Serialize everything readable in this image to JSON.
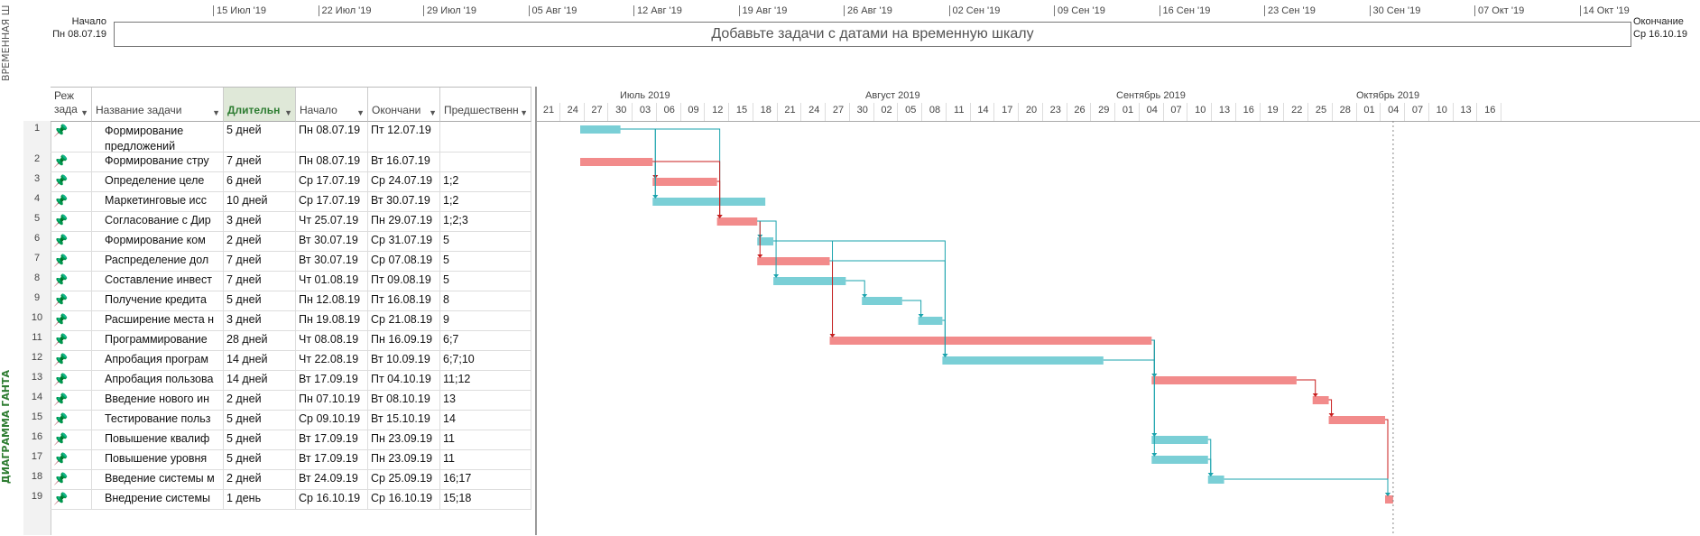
{
  "timeline": {
    "side_label": "ВРЕМЕННАЯ Ш",
    "start_label": "Начало",
    "start_date": "Пн 08.07.19",
    "end_label": "Окончание",
    "end_date": "Ср 16.10.19",
    "placeholder": "Добавьте задачи с датами на временную шкалу",
    "ticks": [
      "15 Июл '19",
      "22 Июл '19",
      "29 Июл '19",
      "05 Авг '19",
      "12 Авг '19",
      "19 Авг '19",
      "26 Авг '19",
      "02 Сен '19",
      "09 Сен '19",
      "16 Сен '19",
      "23 Сен '19",
      "30 Сен '19",
      "07 Окт '19",
      "14 Окт '19"
    ]
  },
  "gantt_label": "ДИАГРАММА ГАНТА",
  "columns": {
    "mode": "Реж зада",
    "name": "Название задачи",
    "duration": "Длительн",
    "start": "Начало",
    "finish": "Окончани",
    "pred": "Предшественн"
  },
  "months": [
    "Июль 2019",
    "Август 2019",
    "Сентябрь 2019",
    "Октябрь 2019"
  ],
  "days": [
    "21",
    "24",
    "27",
    "30",
    "03",
    "06",
    "09",
    "12",
    "15",
    "18",
    "21",
    "24",
    "27",
    "30",
    "02",
    "05",
    "08",
    "11",
    "14",
    "17",
    "20",
    "23",
    "26",
    "29",
    "01",
    "04",
    "07",
    "10",
    "13",
    "16",
    "19",
    "22",
    "25",
    "28",
    "01",
    "04",
    "07",
    "10",
    "13",
    "16"
  ],
  "tasks": [
    {
      "id": "1",
      "name": "Формирование предложений",
      "duration": "5 дней",
      "start": "Пн 08.07.19",
      "finish": "Пт 12.07.19",
      "pred": ""
    },
    {
      "id": "2",
      "name": "Формирование стру",
      "duration": "7 дней",
      "start": "Пн 08.07.19",
      "finish": "Вт 16.07.19",
      "pred": ""
    },
    {
      "id": "3",
      "name": "Определение целе",
      "duration": "6 дней",
      "start": "Ср 17.07.19",
      "finish": "Ср 24.07.19",
      "pred": "1;2"
    },
    {
      "id": "4",
      "name": "Маркетинговые исс",
      "duration": "10 дней",
      "start": "Ср 17.07.19",
      "finish": "Вт 30.07.19",
      "pred": "1;2"
    },
    {
      "id": "5",
      "name": "Согласование с Дир",
      "duration": "3 дней",
      "start": "Чт 25.07.19",
      "finish": "Пн 29.07.19",
      "pred": "1;2;3"
    },
    {
      "id": "6",
      "name": "Формирование ком",
      "duration": "2 дней",
      "start": "Вт 30.07.19",
      "finish": "Ср 31.07.19",
      "pred": "5"
    },
    {
      "id": "7",
      "name": "Распределение дол",
      "duration": "7 дней",
      "start": "Вт 30.07.19",
      "finish": "Ср 07.08.19",
      "pred": "5"
    },
    {
      "id": "8",
      "name": "Составление инвест",
      "duration": "7 дней",
      "start": "Чт 01.08.19",
      "finish": "Пт 09.08.19",
      "pred": "5"
    },
    {
      "id": "9",
      "name": "Получение кредита",
      "duration": "5 дней",
      "start": "Пн 12.08.19",
      "finish": "Пт 16.08.19",
      "pred": "8"
    },
    {
      "id": "10",
      "name": "Расширение места н",
      "duration": "3 дней",
      "start": "Пн 19.08.19",
      "finish": "Ср 21.08.19",
      "pred": "9"
    },
    {
      "id": "11",
      "name": "Программирование",
      "duration": "28 дней",
      "start": "Чт 08.08.19",
      "finish": "Пн 16.09.19",
      "pred": "6;7"
    },
    {
      "id": "12",
      "name": "Апробация програм",
      "duration": "14 дней",
      "start": "Чт 22.08.19",
      "finish": "Вт 10.09.19",
      "pred": "6;7;10"
    },
    {
      "id": "13",
      "name": "Апробация пользова",
      "duration": "14 дней",
      "start": "Вт 17.09.19",
      "finish": "Пт 04.10.19",
      "pred": "11;12"
    },
    {
      "id": "14",
      "name": "Введение нового ин",
      "duration": "2 дней",
      "start": "Пн 07.10.19",
      "finish": "Вт 08.10.19",
      "pred": "13"
    },
    {
      "id": "15",
      "name": "Тестирование польз",
      "duration": "5 дней",
      "start": "Ср 09.10.19",
      "finish": "Вт 15.10.19",
      "pred": "14"
    },
    {
      "id": "16",
      "name": "Повышение квалиф",
      "duration": "5 дней",
      "start": "Вт 17.09.19",
      "finish": "Пн 23.09.19",
      "pred": "11"
    },
    {
      "id": "17",
      "name": "Повышение уровня",
      "duration": "5 дней",
      "start": "Вт 17.09.19",
      "finish": "Пн 23.09.19",
      "pred": "11"
    },
    {
      "id": "18",
      "name": "Введение системы м",
      "duration": "2 дней",
      "start": "Вт 24.09.19",
      "finish": "Ср 25.09.19",
      "pred": "16;17"
    },
    {
      "id": "19",
      "name": "Внедрение системы",
      "duration": "1 день",
      "start": "Ср 16.10.19",
      "finish": "Ср 16.10.19",
      "pred": "15;18"
    }
  ],
  "colors": {
    "critical": "#f28b8b",
    "normal": "#7acfd6",
    "critical_link": "#c81e1e",
    "normal_link": "#1aa3ad",
    "pin": "#19a9a5"
  }
}
